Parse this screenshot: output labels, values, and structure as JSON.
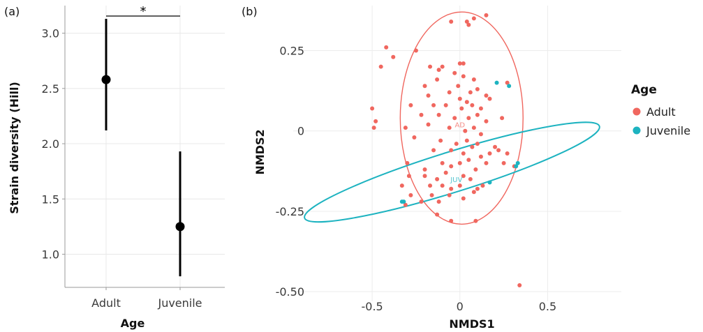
{
  "chart_data": [
    {
      "type": "point-range",
      "panel_label": "(a)",
      "xlabel": "Age",
      "ylabel": "Strain diversity (Hill)",
      "categories": [
        "Adult",
        "Juvenile"
      ],
      "values": [
        2.58,
        1.25
      ],
      "ranges": [
        [
          2.12,
          3.13
        ],
        [
          0.8,
          1.93
        ]
      ],
      "ylim": [
        0.7,
        3.25
      ],
      "yticks": [
        1.0,
        1.5,
        2.0,
        2.5,
        3.0
      ],
      "ytick_labels": [
        "1.0",
        "1.5",
        "2.0",
        "2.5",
        "3.0"
      ],
      "significance": {
        "between": [
          "Adult",
          "Juvenile"
        ],
        "label": "*"
      },
      "grid": true
    },
    {
      "type": "scatter",
      "panel_label": "(b)",
      "xlabel": "NMDS1",
      "ylabel": "NMDS2",
      "xlim": [
        -0.95,
        0.92
      ],
      "ylim": [
        -0.53,
        0.39
      ],
      "xticks": [
        -0.5,
        0,
        0.5
      ],
      "xtick_labels": [
        "-0.5",
        "0",
        "0.5"
      ],
      "yticks": [
        -0.5,
        -0.25,
        0,
        0.25
      ],
      "ytick_labels": [
        "-0.50",
        "-0.25",
        "0",
        "0.25"
      ],
      "grid": true,
      "legend": {
        "title": "Age",
        "position": "right"
      },
      "series": [
        {
          "name": "Adult",
          "color": "#F0675F",
          "centroid_label": "AD",
          "centroid": [
            0.0,
            0.02
          ],
          "ellipse": {
            "center": [
              0.01,
              0.04
            ],
            "rx": 0.35,
            "ry": 0.33,
            "angle": 0
          },
          "points": [
            [
              0.08,
              0.35
            ],
            [
              0.04,
              0.34
            ],
            [
              0.05,
              0.33
            ],
            [
              -0.05,
              0.34
            ],
            [
              0.15,
              0.36
            ],
            [
              -0.42,
              0.26
            ],
            [
              -0.25,
              0.25
            ],
            [
              -0.45,
              0.2
            ],
            [
              -0.38,
              0.23
            ],
            [
              -0.17,
              0.2
            ],
            [
              -0.1,
              0.2
            ],
            [
              -0.12,
              0.19
            ],
            [
              0.0,
              0.21
            ],
            [
              0.02,
              0.21
            ],
            [
              -0.03,
              0.18
            ],
            [
              0.08,
              0.16
            ],
            [
              -0.2,
              0.14
            ],
            [
              -0.13,
              0.16
            ],
            [
              0.02,
              0.17
            ],
            [
              0.1,
              0.13
            ],
            [
              -0.18,
              0.11
            ],
            [
              -0.06,
              0.12
            ],
            [
              -0.01,
              0.14
            ],
            [
              0.06,
              0.12
            ],
            [
              0.15,
              0.11
            ],
            [
              0.27,
              0.15
            ],
            [
              -0.28,
              0.08
            ],
            [
              -0.15,
              0.08
            ],
            [
              -0.08,
              0.08
            ],
            [
              0.01,
              0.07
            ],
            [
              0.04,
              0.09
            ],
            [
              0.07,
              0.08
            ],
            [
              0.12,
              0.07
            ],
            [
              0.17,
              0.1
            ],
            [
              0.0,
              0.1
            ],
            [
              -0.5,
              0.07
            ],
            [
              -0.48,
              0.03
            ],
            [
              -0.49,
              0.01
            ],
            [
              -0.22,
              0.05
            ],
            [
              -0.12,
              0.05
            ],
            [
              -0.03,
              0.04
            ],
            [
              0.05,
              0.04
            ],
            [
              0.1,
              0.05
            ],
            [
              0.15,
              0.03
            ],
            [
              0.24,
              0.04
            ],
            [
              -0.31,
              0.01
            ],
            [
              -0.18,
              0.02
            ],
            [
              -0.06,
              0.01
            ],
            [
              0.03,
              0.0
            ],
            [
              0.08,
              0.01
            ],
            [
              0.12,
              -0.01
            ],
            [
              -0.26,
              -0.02
            ],
            [
              -0.11,
              -0.03
            ],
            [
              -0.02,
              -0.04
            ],
            [
              0.04,
              -0.03
            ],
            [
              0.07,
              -0.05
            ],
            [
              0.1,
              -0.04
            ],
            [
              0.2,
              -0.05
            ],
            [
              -0.15,
              -0.06
            ],
            [
              -0.05,
              -0.06
            ],
            [
              0.02,
              -0.07
            ],
            [
              0.12,
              -0.08
            ],
            [
              0.17,
              -0.07
            ],
            [
              0.22,
              -0.06
            ],
            [
              0.27,
              -0.07
            ],
            [
              -0.3,
              -0.1
            ],
            [
              -0.2,
              -0.12
            ],
            [
              -0.1,
              -0.1
            ],
            [
              -0.05,
              -0.11
            ],
            [
              0.0,
              -0.1
            ],
            [
              0.05,
              -0.09
            ],
            [
              0.09,
              -0.12
            ],
            [
              0.15,
              -0.1
            ],
            [
              0.25,
              -0.1
            ],
            [
              0.31,
              -0.11
            ],
            [
              -0.29,
              -0.14
            ],
            [
              -0.2,
              -0.14
            ],
            [
              -0.13,
              -0.15
            ],
            [
              -0.08,
              -0.13
            ],
            [
              0.02,
              -0.14
            ],
            [
              0.06,
              -0.15
            ],
            [
              -0.33,
              -0.17
            ],
            [
              -0.17,
              -0.17
            ],
            [
              -0.1,
              -0.17
            ],
            [
              -0.05,
              -0.18
            ],
            [
              0.0,
              -0.17
            ],
            [
              0.1,
              -0.18
            ],
            [
              0.13,
              -0.17
            ],
            [
              -0.28,
              -0.2
            ],
            [
              -0.16,
              -0.2
            ],
            [
              -0.06,
              -0.2
            ],
            [
              0.08,
              -0.19
            ],
            [
              -0.22,
              -0.22
            ],
            [
              -0.12,
              -0.22
            ],
            [
              0.02,
              -0.21
            ],
            [
              -0.31,
              -0.23
            ],
            [
              -0.13,
              -0.26
            ],
            [
              -0.05,
              -0.28
            ],
            [
              0.09,
              -0.28
            ],
            [
              0.34,
              -0.48
            ]
          ]
        },
        {
          "name": "Juvenile",
          "color": "#1DB3C0",
          "centroid_label": "JUV",
          "centroid": [
            -0.02,
            -0.15
          ],
          "ellipse": {
            "center": [
              -0.045,
              -0.128
            ],
            "rx": 0.88,
            "ry": 0.063,
            "angle": -17.3
          },
          "points": [
            [
              0.21,
              0.15
            ],
            [
              0.28,
              0.14
            ],
            [
              0.17,
              -0.16
            ],
            [
              0.33,
              -0.1
            ],
            [
              0.32,
              -0.11
            ],
            [
              -0.32,
              -0.22
            ],
            [
              -0.33,
              -0.22
            ]
          ]
        }
      ]
    }
  ]
}
